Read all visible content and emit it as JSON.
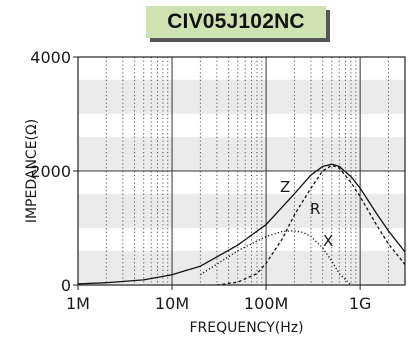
{
  "chart_data": {
    "type": "line",
    "title": "CIV05J102NC",
    "xlabel": "FREQUENCY(Hz)",
    "ylabel": "IMPEDANCE(Ω)",
    "x_scale": "log",
    "xlim": [
      1000000,
      3000000000
    ],
    "ylim": [
      0,
      4000
    ],
    "x_ticks": [
      {
        "value": 1000000,
        "label": "1M"
      },
      {
        "value": 10000000,
        "label": "10M"
      },
      {
        "value": 100000000,
        "label": "100M"
      },
      {
        "value": 1000000000,
        "label": "1G"
      }
    ],
    "y_ticks": [
      {
        "value": 0,
        "label": "0"
      },
      {
        "value": 2000,
        "label": "2000"
      },
      {
        "value": 4000,
        "label": "4000"
      }
    ],
    "grid": true,
    "series": [
      {
        "name": "Z",
        "style": "solid",
        "x": [
          1000000,
          2000000,
          5000000,
          10000000,
          20000000,
          50000000,
          100000000,
          200000000,
          300000000,
          400000000,
          500000000,
          600000000,
          800000000,
          1000000000,
          1500000000,
          2000000000,
          3000000000
        ],
        "y": [
          20,
          40,
          90,
          180,
          330,
          700,
          1060,
          1600,
          1930,
          2080,
          2120,
          2080,
          1900,
          1700,
          1250,
          950,
          580
        ]
      },
      {
        "name": "R",
        "style": "dashed",
        "x": [
          30000000,
          50000000,
          80000000,
          100000000,
          150000000,
          200000000,
          300000000,
          400000000,
          500000000,
          600000000,
          800000000,
          1000000000,
          1500000000,
          2000000000,
          3000000000
        ],
        "y": [
          0,
          50,
          200,
          380,
          820,
          1230,
          1700,
          2000,
          2100,
          2050,
          1800,
          1550,
          1050,
          720,
          360
        ]
      },
      {
        "name": "X",
        "style": "dotted",
        "x": [
          20000000,
          50000000,
          100000000,
          150000000,
          200000000,
          250000000,
          300000000,
          400000000,
          500000000,
          600000000,
          800000000
        ],
        "y": [
          180,
          600,
          850,
          940,
          950,
          920,
          850,
          650,
          420,
          200,
          0
        ]
      }
    ],
    "curve_labels": [
      {
        "series": "Z",
        "text": "Z"
      },
      {
        "series": "R",
        "text": "R"
      },
      {
        "series": "X",
        "text": "X"
      }
    ]
  }
}
